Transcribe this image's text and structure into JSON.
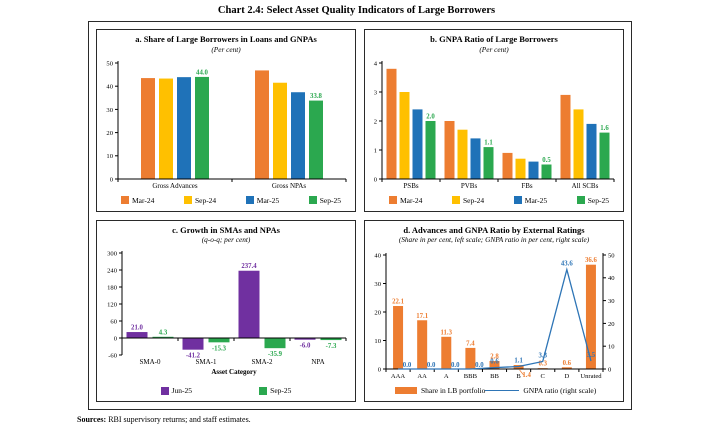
{
  "title": "Chart 2.4: Select Asset Quality Indicators of Large Borrowers",
  "sources_label": "Sources:",
  "sources_text": " RBI supervisory returns; and staff estimates.",
  "colors": {
    "orange": "#ED7D31",
    "yellow": "#FFC000",
    "blue": "#1F72B8",
    "green": "#2BA84F",
    "purple": "#7030A0",
    "line_blue": "#2E75B6"
  },
  "chart_data": [
    {
      "type": "bar",
      "title": "a. Share of Large Borrowers in Loans and GNPAs",
      "subtitle": "(Per cent)",
      "categories": [
        "Gross Advances",
        "Gross NPAs"
      ],
      "series": [
        {
          "name": "Mar-24",
          "color": "#ED7D31",
          "values": [
            43.5,
            46.8
          ]
        },
        {
          "name": "Sep-24",
          "color": "#FFC000",
          "values": [
            43.3,
            41.5
          ]
        },
        {
          "name": "Mar-25",
          "color": "#1F72B8",
          "values": [
            43.9,
            37.4
          ]
        },
        {
          "name": "Sep-25",
          "color": "#2BA84F",
          "values": [
            44.0,
            33.8
          ],
          "labels": [
            "44.0",
            "33.8"
          ]
        }
      ],
      "ylim": [
        0,
        50
      ],
      "yticks": [
        0,
        10,
        20,
        30,
        40,
        50
      ],
      "grid": false,
      "legend_position": "bottom"
    },
    {
      "type": "bar",
      "title": "b. GNPA Ratio of Large Borrowers",
      "subtitle": "(Per cent)",
      "categories": [
        "PSBs",
        "PVBs",
        "FBs",
        "All SCBs"
      ],
      "series": [
        {
          "name": "Mar-24",
          "color": "#ED7D31",
          "values": [
            3.8,
            2.0,
            0.9,
            2.9
          ]
        },
        {
          "name": "Sep-24",
          "color": "#FFC000",
          "values": [
            3.0,
            1.7,
            0.7,
            2.4
          ]
        },
        {
          "name": "Mar-25",
          "color": "#1F72B8",
          "values": [
            2.4,
            1.4,
            0.6,
            1.9
          ]
        },
        {
          "name": "Sep-25",
          "color": "#2BA84F",
          "values": [
            2.0,
            1.1,
            0.5,
            1.6
          ],
          "labels": [
            "2.0",
            "1.1",
            "0.5",
            "1.6"
          ]
        }
      ],
      "ylim": [
        0,
        4
      ],
      "yticks": [
        0,
        1,
        2,
        3,
        4
      ],
      "grid": false,
      "legend_position": "bottom"
    },
    {
      "type": "bar",
      "title": "c. Growth in SMAs and NPAs",
      "subtitle": "(q-o-q; per cent)",
      "categories": [
        "SMA-0",
        "SMA-1",
        "SMA-2",
        "NPA"
      ],
      "xlabel": "Asset Category",
      "series": [
        {
          "name": "Jun-25",
          "color": "#7030A0",
          "values": [
            21.0,
            -41.2,
            237.4,
            -6.0
          ],
          "labels": [
            "21.0",
            "-41.2",
            "237.4",
            "-6.0"
          ]
        },
        {
          "name": "Sep-25",
          "color": "#2BA84F",
          "values": [
            4.3,
            -15.3,
            -35.9,
            -7.3
          ],
          "labels": [
            "4.3",
            "-15.3",
            "-35.9",
            "-7.3"
          ]
        }
      ],
      "ylim": [
        -60,
        300
      ],
      "yticks": [
        -60,
        0,
        60,
        120,
        180,
        240,
        300
      ],
      "grid": false,
      "legend_position": "bottom"
    },
    {
      "type": "bar+line",
      "title": "d. Advances and GNPA Ratio by External Ratings",
      "subtitle": "(Share in per cent, left scale; GNPA ratio in per cent, right scale)",
      "categories": [
        "AAA",
        "AA",
        "A",
        "BBB",
        "BB",
        "B",
        "C",
        "D",
        "Unrated"
      ],
      "bar_series": {
        "name": "Share in LB portfolio",
        "color": "#ED7D31",
        "values": [
          22.1,
          17.1,
          11.3,
          7.4,
          2.8,
          1.4,
          0.3,
          0.6,
          36.6
        ],
        "labels": [
          "22.1",
          "17.1",
          "11.3",
          "7.4",
          "2.8",
          "1.4",
          "0.3",
          "0.6",
          "36.6"
        ],
        "label_below_indices": [
          5
        ]
      },
      "line_series": {
        "name": "GNPA ratio (right scale)",
        "color": "#2E75B6",
        "values": [
          0.0,
          0.0,
          0.0,
          0.0,
          0.6,
          1.1,
          3.3,
          43.6,
          3.5
        ],
        "labels": [
          "0.0",
          "0.0",
          "0.0",
          "0.0",
          "0.6",
          "1.1",
          "3.3",
          "43.6",
          "3.5"
        ]
      },
      "ylim_left": [
        0,
        40
      ],
      "yticks_left": [
        0,
        10,
        20,
        30,
        40
      ],
      "ylim_right": [
        0,
        50
      ],
      "yticks_right": [
        0,
        10,
        20,
        30,
        40,
        50
      ],
      "grid": false,
      "legend_position": "bottom"
    }
  ]
}
